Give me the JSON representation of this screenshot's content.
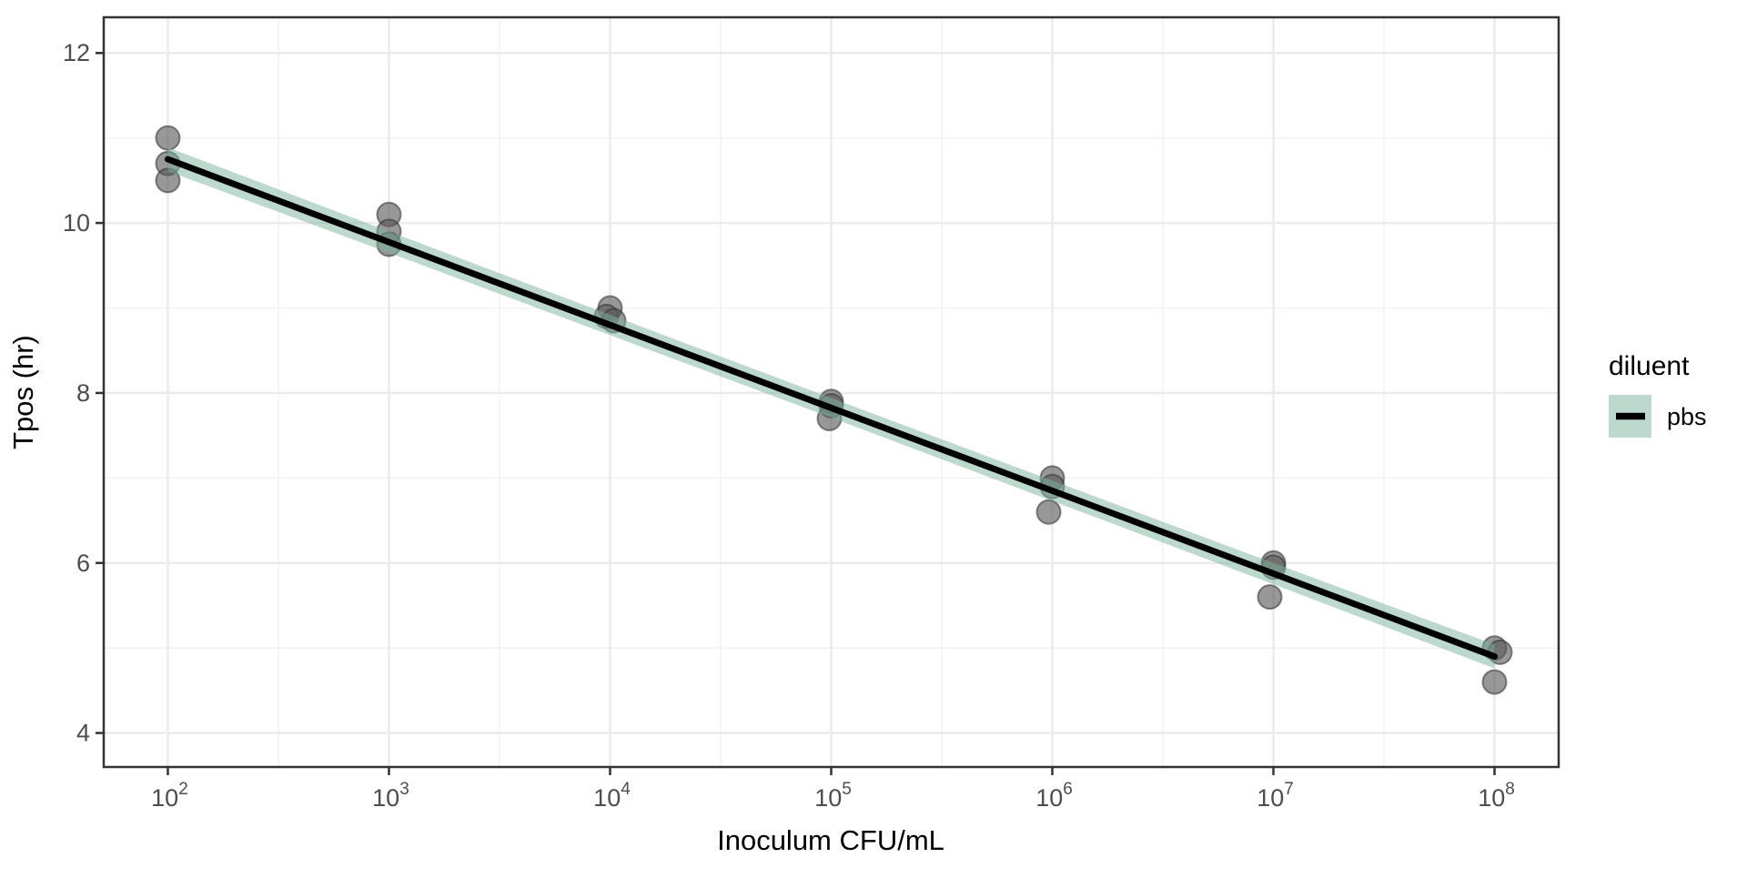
{
  "chart_data": {
    "type": "scatter",
    "title": "",
    "xlabel": "Inoculum CFU/mL",
    "ylabel": "Tpos (hr)",
    "x_scale": "log10",
    "x_tick_base": "10",
    "x_tick_exponents": [
      2,
      3,
      4,
      5,
      6,
      7,
      8
    ],
    "x_minor_log": [
      2.5,
      3.5,
      4.5,
      5.5,
      6.5,
      7.5
    ],
    "y_ticks": [
      4,
      6,
      8,
      10,
      12
    ],
    "y_minor": [
      5,
      7,
      9,
      11
    ],
    "xlim_log": [
      1.71,
      8.29
    ],
    "ylim": [
      3.6,
      12.42
    ],
    "grid": true,
    "legend_position": "right",
    "points": [
      {
        "x_log": 2,
        "y": 11.0,
        "dx": 0
      },
      {
        "x_log": 2,
        "y": 10.7,
        "dx": 0
      },
      {
        "x_log": 2,
        "y": 10.5,
        "dx": 0
      },
      {
        "x_log": 3,
        "y": 10.1,
        "dx": 0
      },
      {
        "x_log": 3,
        "y": 9.9,
        "dx": 0
      },
      {
        "x_log": 3,
        "y": 9.75,
        "dx": 0
      },
      {
        "x_log": 4,
        "y": 9.0,
        "dx": 0
      },
      {
        "x_log": 4,
        "y": 8.9,
        "dx": -4
      },
      {
        "x_log": 4,
        "y": 8.85,
        "dx": 4
      },
      {
        "x_log": 5,
        "y": 7.9,
        "dx": 0
      },
      {
        "x_log": 5,
        "y": 7.85,
        "dx": 0
      },
      {
        "x_log": 5,
        "y": 7.7,
        "dx": -2
      },
      {
        "x_log": 6,
        "y": 7.0,
        "dx": 0
      },
      {
        "x_log": 6,
        "y": 6.9,
        "dx": 0
      },
      {
        "x_log": 6,
        "y": 6.6,
        "dx": -4
      },
      {
        "x_log": 7,
        "y": 6.0,
        "dx": 0
      },
      {
        "x_log": 7,
        "y": 5.95,
        "dx": 0
      },
      {
        "x_log": 7,
        "y": 5.6,
        "dx": -4
      },
      {
        "x_log": 8,
        "y": 5.0,
        "dx": 0
      },
      {
        "x_log": 8,
        "y": 4.95,
        "dx": 6
      },
      {
        "x_log": 8,
        "y": 4.6,
        "dx": 0
      }
    ],
    "fit_line": {
      "x_log": [
        2,
        8
      ],
      "y": [
        10.75,
        4.9
      ]
    },
    "ribbon": {
      "x_log": [
        2,
        3,
        4,
        5,
        6,
        7,
        8
      ],
      "upper": [
        10.89,
        9.9,
        8.92,
        7.94,
        6.97,
        6.0,
        5.04
      ],
      "lower": [
        10.61,
        9.65,
        8.68,
        7.71,
        6.73,
        5.75,
        4.76
      ]
    },
    "legend": {
      "title": "diluent",
      "items": [
        {
          "label": "pbs"
        }
      ]
    },
    "colors": {
      "background": "#ffffff",
      "panel_border": "#333333",
      "grid_major": "#ebebeb",
      "grid_minor": "#f2f2f2",
      "tick_mark": "#333333",
      "tick_label": "#4d4d4d",
      "axis_title": "#000000",
      "point_fill": "#595959",
      "point_stroke": "#2e2e2e",
      "fit_line": "#000000",
      "ribbon_fill": "#7bb39b",
      "legend_text": "#000000"
    }
  }
}
